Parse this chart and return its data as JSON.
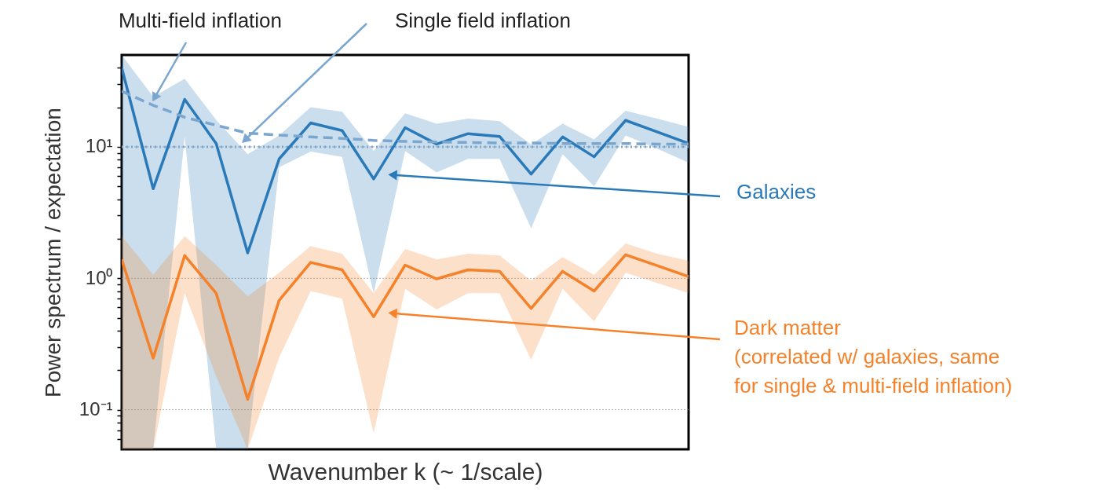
{
  "chart_data": {
    "type": "line",
    "xlabel": "Wavenumber k (~ 1/scale)",
    "ylabel": "Power spectrum / expectation",
    "categories": [
      null,
      null,
      null,
      null,
      null,
      null,
      null,
      null,
      null,
      null,
      null,
      null,
      null,
      null,
      null,
      null,
      null,
      null,
      null
    ],
    "ylim": [
      0.05,
      50
    ],
    "log": "y",
    "grid": "y",
    "tick_labels": "y",
    "yticks": [
      {
        "value": 0.06,
        "label": null
      },
      {
        "value": 0.07,
        "label": null
      },
      {
        "value": 0.08,
        "label": null
      },
      {
        "value": 0.09,
        "label": null
      },
      {
        "value": 0.1,
        "label": "10⁻¹"
      },
      {
        "value": 0.2,
        "label": null
      },
      {
        "value": 0.3,
        "label": null
      },
      {
        "value": 0.4,
        "label": null
      },
      {
        "value": 0.5,
        "label": null
      },
      {
        "value": 0.6,
        "label": null
      },
      {
        "value": 0.7,
        "label": null
      },
      {
        "value": 0.8,
        "label": null
      },
      {
        "value": 0.9,
        "label": null
      },
      {
        "value": 1,
        "label": "10⁰"
      },
      {
        "value": 2,
        "label": null
      },
      {
        "value": 3,
        "label": null
      },
      {
        "value": 4,
        "label": null
      },
      {
        "value": 5,
        "label": null
      },
      {
        "value": 6,
        "label": null
      },
      {
        "value": 7,
        "label": null
      },
      {
        "value": 8,
        "label": null
      },
      {
        "value": 9,
        "label": null
      },
      {
        "value": 10,
        "label": "10¹"
      },
      {
        "value": 20,
        "label": null
      },
      {
        "value": 30,
        "label": null
      },
      {
        "value": 40,
        "label": null
      }
    ],
    "series": [
      {
        "color": "#2a7ab9",
        "line_style": "solid",
        "values": [
          40,
          4.8,
          23,
          10.6,
          1.56,
          8.1,
          15.2,
          13.3,
          5.7,
          14,
          10.5,
          12.6,
          12,
          6.2,
          11.9,
          8.4,
          15.9,
          13,
          10.6
        ],
        "lower": [
          0.05,
          0.05,
          12,
          0.05,
          0.05,
          7,
          9.2,
          8.4,
          0.77,
          9.3,
          6.4,
          8.1,
          8.1,
          2.4,
          8.8,
          5,
          12.2,
          9.7,
          7.6
        ],
        "upper": [
          50,
          24,
          33,
          16,
          8.8,
          12.2,
          20,
          18.5,
          9.3,
          18,
          15,
          16.4,
          15.7,
          10.4,
          15,
          11.4,
          18.8,
          16.4,
          14.2
        ]
      },
      {
        "color": "#f5822a",
        "line_style": "solid",
        "values": [
          1.39,
          0.247,
          1.49,
          0.77,
          0.12,
          0.68,
          1.32,
          1.16,
          0.51,
          1.26,
          0.99,
          1.16,
          1.13,
          0.59,
          1.13,
          0.8,
          1.51,
          1.25,
          1.03
        ],
        "lower": [
          0.05,
          0.05,
          0.77,
          0.18,
          0.05,
          0.25,
          0.8,
          0.7,
          0.066,
          0.83,
          0.58,
          0.77,
          0.77,
          0.24,
          0.83,
          0.47,
          1.1,
          0.92,
          0.77
        ],
        "upper": [
          2.1,
          1.06,
          2.1,
          1.26,
          0.73,
          1.1,
          1.76,
          1.54,
          0.77,
          1.67,
          1.39,
          1.54,
          1.49,
          0.96,
          1.45,
          1.06,
          1.84,
          1.54,
          1.36
        ]
      },
      {
        "color": "#7aa6cf",
        "line_style": "dashed",
        "values": [
          26.5,
          20.7,
          16.8,
          14.6,
          12.7,
          12.3,
          11.9,
          11.6,
          11.2,
          11,
          10.9,
          10.8,
          10.7,
          10.7,
          10.6,
          10.6,
          10.6,
          10.5,
          10.5
        ]
      }
    ],
    "ref_lines": [
      {
        "axis": "y",
        "value": 10,
        "color": "#7aa6cf",
        "line_style": "dotted"
      }
    ],
    "annotations": [
      "Multi-field inflation",
      "Single field inflation",
      "Galaxies",
      "Dark matter\n(correlated w/ galaxies, same\nfor single & multi-field inflation)"
    ]
  }
}
